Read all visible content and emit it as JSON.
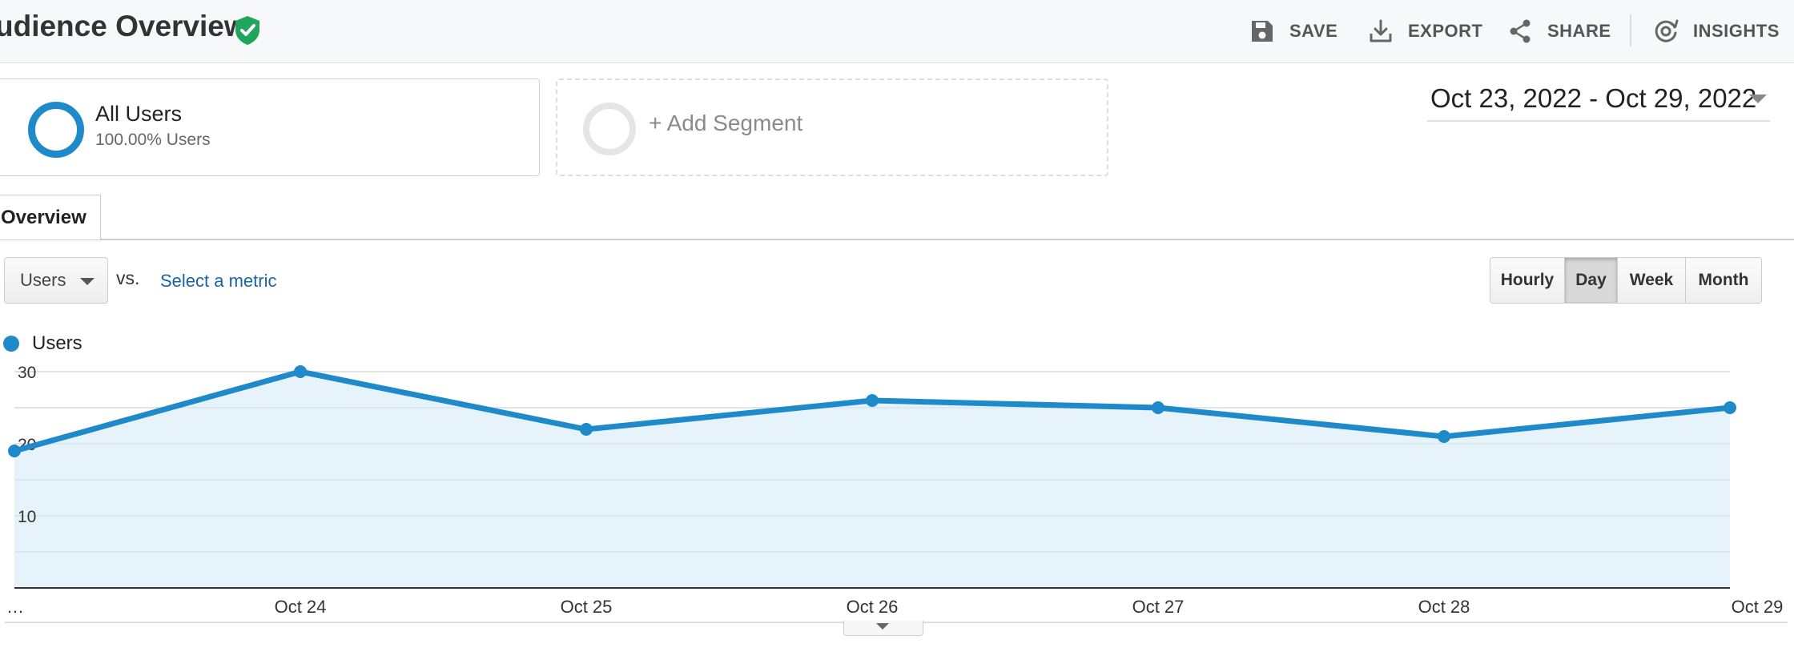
{
  "header": {
    "title": "udience Overview",
    "actions": [
      {
        "label": "SAVE",
        "icon": "save-icon"
      },
      {
        "label": "EXPORT",
        "icon": "export-icon"
      },
      {
        "label": "SHARE",
        "icon": "share-icon"
      },
      {
        "label": "INSIGHTS",
        "icon": "insights-icon"
      }
    ]
  },
  "segments": {
    "all_users": {
      "name": "All Users",
      "sub": "100.00% Users"
    },
    "add_segment": {
      "label": "+ Add Segment"
    }
  },
  "daterange": {
    "label": "Oct 23, 2022 - Oct 29, 2022"
  },
  "tabs": {
    "overview": "Overview"
  },
  "metric": {
    "selected": "Users",
    "vs": "vs.",
    "select_label": "Select a metric"
  },
  "granularity": {
    "options": [
      "Hourly",
      "Day",
      "Week",
      "Month"
    ],
    "selected": "Day"
  },
  "legend": {
    "label": "Users"
  },
  "colors": {
    "accent": "#1f8ac9",
    "area": "#e6f3fa",
    "verified": "#21a45b",
    "link": "#1a64a6"
  },
  "chart_data": {
    "type": "area",
    "x": [
      "…",
      "Oct 24",
      "Oct 25",
      "Oct 26",
      "Oct 27",
      "Oct 28",
      "Oct 29"
    ],
    "series": [
      {
        "name": "Users",
        "values": [
          19,
          30,
          22,
          26,
          25,
          21,
          25
        ]
      }
    ],
    "yticks": [
      10,
      20,
      30
    ],
    "ylim": [
      0,
      30
    ],
    "grid": true
  }
}
